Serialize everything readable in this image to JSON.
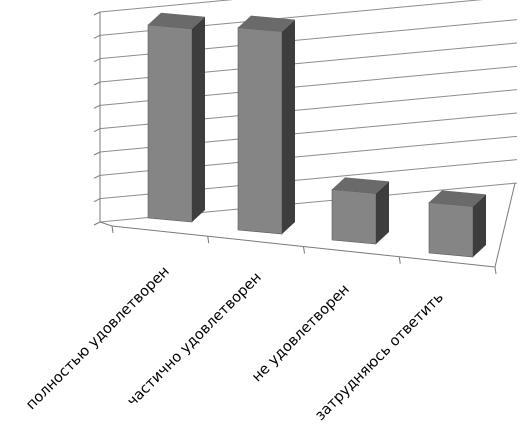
{
  "chart_data": {
    "type": "bar",
    "three_d": true,
    "categories": [
      "полностью удовлетворен",
      "частично удовлетворен",
      "не удовлетворен",
      "затрудняюсь ответить"
    ],
    "values": [
      42,
      44,
      11,
      11
    ],
    "ylim": [
      0,
      45
    ],
    "grid": true,
    "legend": "none",
    "colors": {
      "bar_front": "#858585",
      "bar_side": "#3d3d3d",
      "bar_top": "#6a6a6a",
      "grid": "#8c8c8c",
      "axis": "#7a7a7a"
    }
  }
}
